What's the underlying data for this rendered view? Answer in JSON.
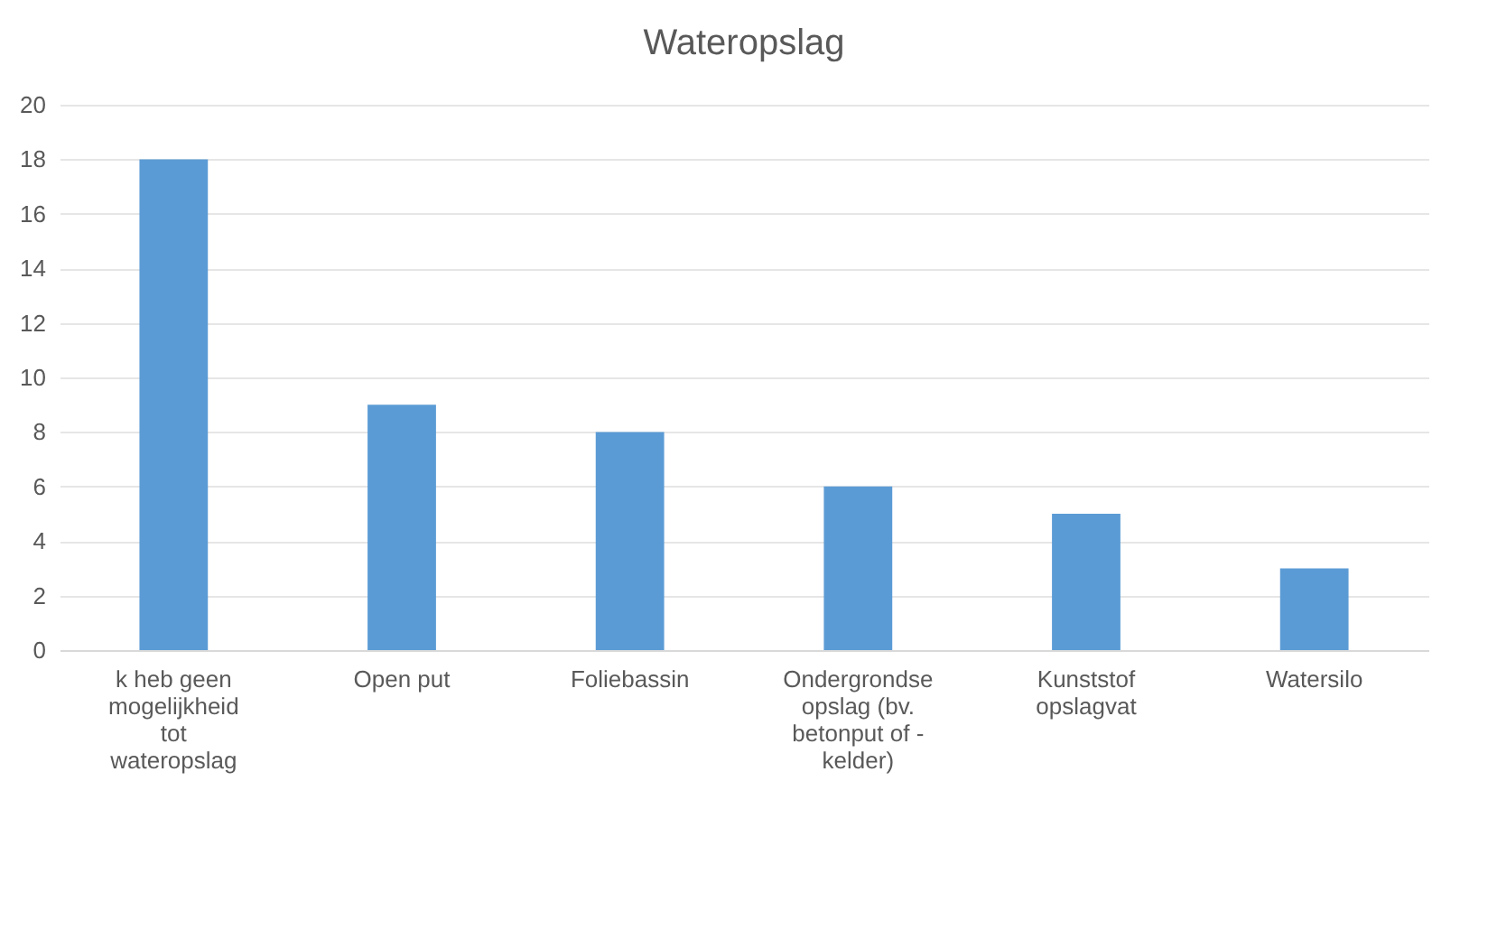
{
  "chart_data": {
    "type": "bar",
    "title": "Wateropslag",
    "categories": [
      "k heb geen mogelijkheid tot wateropslag",
      "Open put",
      "Foliebassin",
      "Ondergrondse opslag (bv. betonput of - kelder)",
      "Kunststof opslagvat",
      "Watersilo"
    ],
    "values": [
      18,
      9,
      8,
      6,
      5,
      3
    ],
    "color": "#5b9bd5",
    "ylim": [
      0,
      20
    ],
    "yticks": [
      0,
      2,
      4,
      6,
      8,
      10,
      12,
      14,
      16,
      18,
      20
    ],
    "grid": "y"
  }
}
